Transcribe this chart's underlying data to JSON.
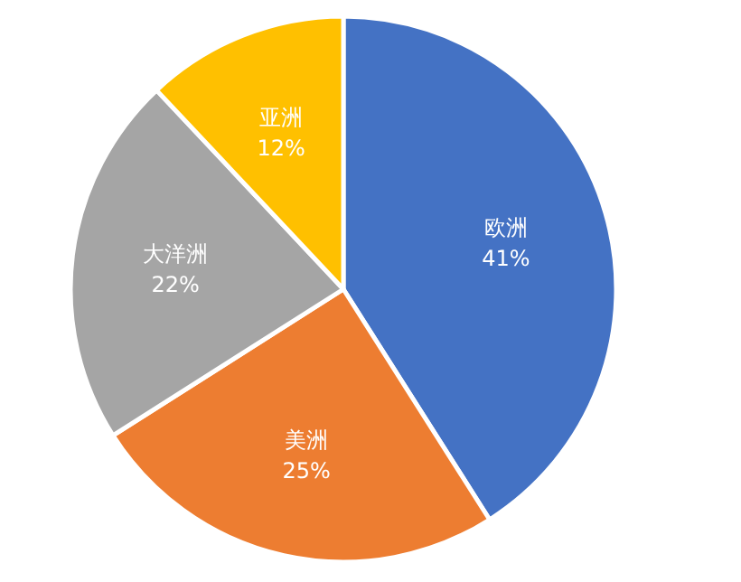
{
  "chart_data": {
    "type": "pie",
    "categories": [
      "欧洲",
      "美洲",
      "大洋洲",
      "亚洲"
    ],
    "values": [
      41,
      25,
      22,
      12
    ],
    "value_labels": [
      "41%",
      "25%",
      "22%",
      "12%"
    ],
    "colors": [
      "#4472c4",
      "#ed7d31",
      "#a5a5a5",
      "#ffc000"
    ]
  }
}
